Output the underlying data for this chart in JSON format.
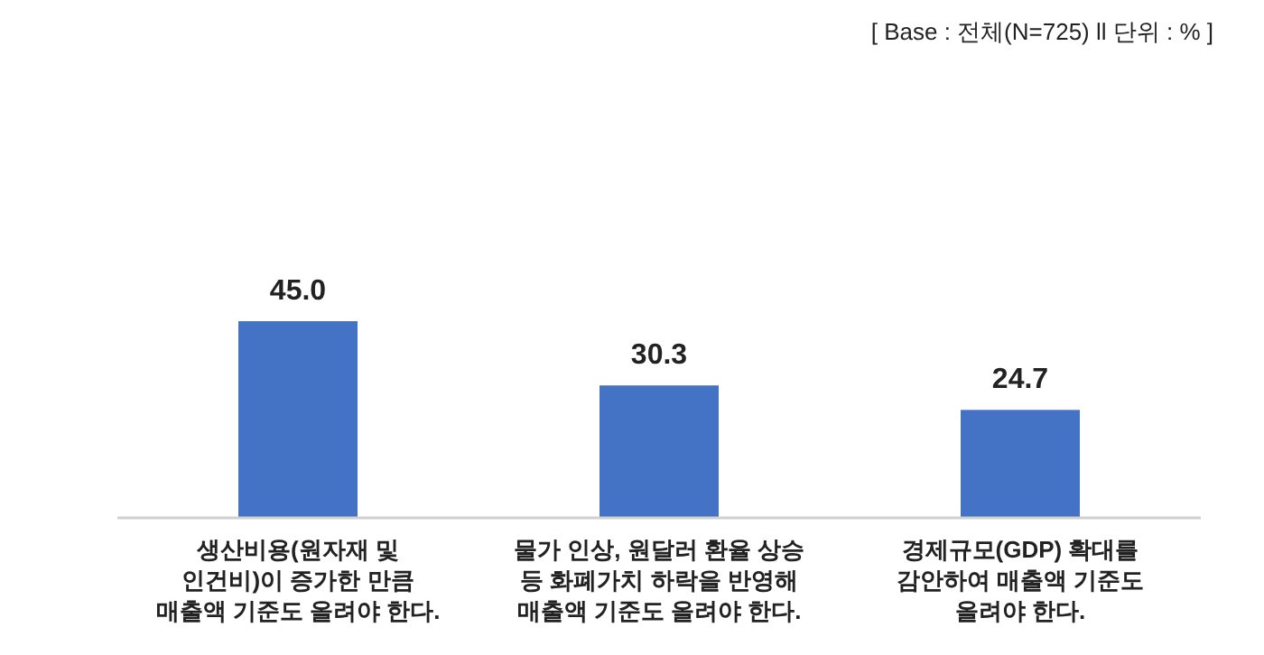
{
  "chart_data": {
    "type": "bar",
    "categories": [
      "생산비용(원자재 및\n인건비)이 증가한 만큼\n매출액 기준도 올려야 한다.",
      "물가 인상, 원달러 환율 상승\n등 화폐가치 하락을 반영해\n매출액 기준도 올려야 한다.",
      "경제규모(GDP) 확대를\n감안하여 매출액 기준도\n올려야 한다."
    ],
    "values": [
      45.0,
      30.3,
      24.7
    ],
    "color": "#4472c4",
    "value_labels": [
      "45.0",
      "30.3",
      "24.7"
    ],
    "annotations": [
      "[ Base : 전체(N=725) ll 단위 : % ]"
    ]
  }
}
